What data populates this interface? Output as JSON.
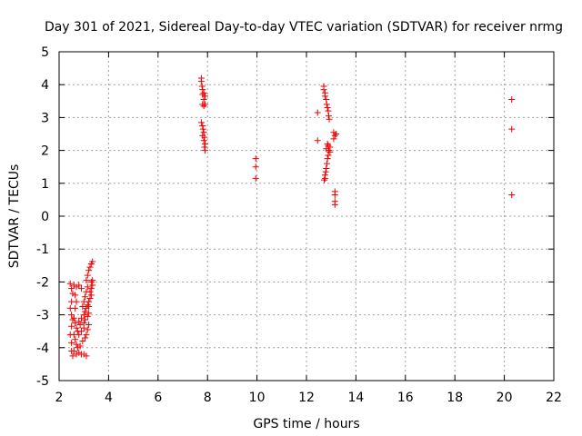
{
  "chart_data": {
    "type": "scatter",
    "title": "Day 301 of 2021, Sidereal Day-to-day VTEC variation (SDTVAR) for receiver nrmg",
    "xlabel": "GPS time / hours",
    "ylabel": "SDTVAR / TECUs",
    "xlim": [
      2,
      22
    ],
    "ylim": [
      -5,
      5
    ],
    "xticks": [
      2,
      4,
      6,
      8,
      10,
      12,
      14,
      16,
      18,
      20,
      22
    ],
    "yticks": [
      -5,
      -4,
      -3,
      -2,
      -1,
      0,
      1,
      2,
      3,
      4,
      5
    ],
    "xtick_labels": [
      "2",
      "4",
      "6",
      "8",
      "10",
      "12",
      "14",
      "16",
      "18",
      "20",
      "22"
    ],
    "ytick_labels": [
      "-5",
      "-4",
      "-3",
      "-2",
      "-1",
      "0",
      "1",
      "2",
      "3",
      "4",
      "5"
    ],
    "grid": true,
    "marker": "+",
    "color": "#ee0000",
    "series": [
      {
        "name": "SDTVAR",
        "points": [
          [
            2.45,
            -2.05
          ],
          [
            2.5,
            -2.2
          ],
          [
            2.55,
            -2.35
          ],
          [
            2.5,
            -2.6
          ],
          [
            2.45,
            -2.8
          ],
          [
            2.5,
            -3.0
          ],
          [
            2.55,
            -3.15
          ],
          [
            2.5,
            -3.35
          ],
          [
            2.45,
            -3.6
          ],
          [
            2.5,
            -3.85
          ],
          [
            2.5,
            -4.1
          ],
          [
            2.55,
            -4.25
          ],
          [
            2.6,
            -2.1
          ],
          [
            2.7,
            -2.15
          ],
          [
            2.8,
            -2.1
          ],
          [
            2.9,
            -2.2
          ],
          [
            2.65,
            -2.4
          ],
          [
            2.7,
            -2.6
          ],
          [
            2.65,
            -2.8
          ],
          [
            2.6,
            -3.1
          ],
          [
            2.65,
            -3.25
          ],
          [
            2.7,
            -3.4
          ],
          [
            2.75,
            -3.5
          ],
          [
            2.6,
            -3.6
          ],
          [
            2.65,
            -3.75
          ],
          [
            2.7,
            -3.9
          ],
          [
            2.75,
            -4.0
          ],
          [
            2.6,
            -4.1
          ],
          [
            2.7,
            -4.2
          ],
          [
            2.8,
            -4.15
          ],
          [
            2.9,
            -4.2
          ],
          [
            3.0,
            -4.2
          ],
          [
            3.1,
            -4.25
          ],
          [
            2.85,
            -3.95
          ],
          [
            2.95,
            -3.8
          ],
          [
            3.05,
            -3.7
          ],
          [
            2.8,
            -3.6
          ],
          [
            2.9,
            -3.5
          ],
          [
            3.0,
            -3.4
          ],
          [
            2.85,
            -3.3
          ],
          [
            2.8,
            -3.2
          ],
          [
            2.9,
            -3.1
          ],
          [
            3.0,
            -3.0
          ],
          [
            3.05,
            -2.9
          ],
          [
            3.1,
            -2.8
          ],
          [
            3.15,
            -2.7
          ],
          [
            3.2,
            -2.6
          ],
          [
            3.25,
            -2.5
          ],
          [
            3.3,
            -2.4
          ],
          [
            3.25,
            -2.3
          ],
          [
            3.3,
            -2.2
          ],
          [
            3.35,
            -2.1
          ],
          [
            3.3,
            -2.0
          ],
          [
            3.35,
            -1.95
          ],
          [
            2.95,
            -2.75
          ],
          [
            3.0,
            -2.6
          ],
          [
            3.05,
            -2.45
          ],
          [
            3.1,
            -2.3
          ],
          [
            3.15,
            -2.15
          ],
          [
            3.1,
            -1.95
          ],
          [
            3.15,
            -1.8
          ],
          [
            3.2,
            -1.65
          ],
          [
            3.25,
            -1.55
          ],
          [
            3.3,
            -1.45
          ],
          [
            3.35,
            -1.38
          ],
          [
            3.0,
            -3.25
          ],
          [
            3.05,
            -3.15
          ],
          [
            3.15,
            -3.05
          ],
          [
            3.2,
            -2.95
          ],
          [
            3.1,
            -3.6
          ],
          [
            3.15,
            -3.45
          ],
          [
            3.2,
            -3.3
          ],
          [
            3.2,
            -2.75
          ],
          [
            7.75,
            4.2
          ],
          [
            7.75,
            4.1
          ],
          [
            7.78,
            3.95
          ],
          [
            7.8,
            3.85
          ],
          [
            7.85,
            3.75
          ],
          [
            7.8,
            3.7
          ],
          [
            7.9,
            3.65
          ],
          [
            7.85,
            3.55
          ],
          [
            7.8,
            3.4
          ],
          [
            7.85,
            3.35
          ],
          [
            7.9,
            3.4
          ],
          [
            7.75,
            2.85
          ],
          [
            7.8,
            2.75
          ],
          [
            7.82,
            2.65
          ],
          [
            7.85,
            2.55
          ],
          [
            7.8,
            2.45
          ],
          [
            7.88,
            2.4
          ],
          [
            7.85,
            2.3
          ],
          [
            7.9,
            2.2
          ],
          [
            7.88,
            2.1
          ],
          [
            7.9,
            2.0
          ],
          [
            9.95,
            1.75
          ],
          [
            9.95,
            1.5
          ],
          [
            9.95,
            1.15
          ],
          [
            12.45,
            3.15
          ],
          [
            12.45,
            2.3
          ],
          [
            12.7,
            3.95
          ],
          [
            12.7,
            3.85
          ],
          [
            12.75,
            3.75
          ],
          [
            12.75,
            3.65
          ],
          [
            12.8,
            3.55
          ],
          [
            12.82,
            3.4
          ],
          [
            12.85,
            3.3
          ],
          [
            12.88,
            3.2
          ],
          [
            12.9,
            3.05
          ],
          [
            12.92,
            2.95
          ],
          [
            12.85,
            2.2
          ],
          [
            12.88,
            2.15
          ],
          [
            12.95,
            2.1
          ],
          [
            12.8,
            2.05
          ],
          [
            12.9,
            2.0
          ],
          [
            12.95,
            1.95
          ],
          [
            12.88,
            1.85
          ],
          [
            12.85,
            1.75
          ],
          [
            12.83,
            1.6
          ],
          [
            12.8,
            1.45
          ],
          [
            12.78,
            1.35
          ],
          [
            12.75,
            1.25
          ],
          [
            12.75,
            1.15
          ],
          [
            12.72,
            1.1
          ],
          [
            13.1,
            2.55
          ],
          [
            13.15,
            2.45
          ],
          [
            13.2,
            2.5
          ],
          [
            13.1,
            2.35
          ],
          [
            13.15,
            0.75
          ],
          [
            13.15,
            0.65
          ],
          [
            13.15,
            0.45
          ],
          [
            13.15,
            0.35
          ],
          [
            20.3,
            3.55
          ],
          [
            20.3,
            2.65
          ],
          [
            20.3,
            0.65
          ]
        ]
      }
    ]
  }
}
